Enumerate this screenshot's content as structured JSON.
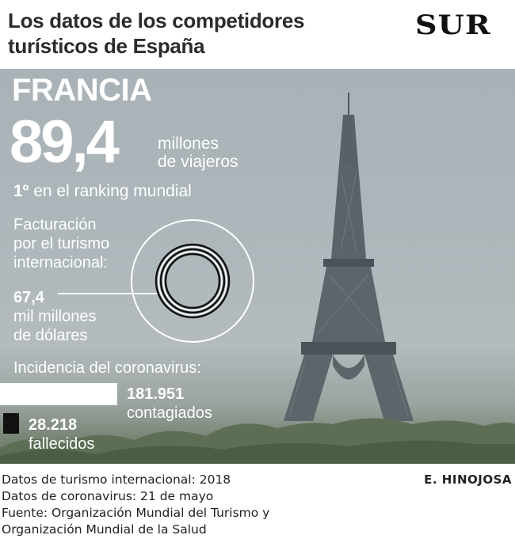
{
  "header": {
    "title_line1": "Los datos de los competidores",
    "title_line2": "turísticos de España",
    "logo": "SUR"
  },
  "infographic": {
    "country": "FRANCIA",
    "travelers_value": "89,4",
    "travelers_unit_line1": "millones",
    "travelers_unit_line2": "de viajeros",
    "rank_number": "1º",
    "rank_text": "en el ranking mundial",
    "revenue_label_line1": "Facturación",
    "revenue_label_line2": "por el turismo",
    "revenue_label_line3": "internacional:",
    "revenue_value": "67,4",
    "revenue_unit_line1": "mil millones",
    "revenue_unit_line2": "de dólares",
    "incidence_label": "Incidencia del coronavirus:",
    "cases_value": "181.951",
    "cases_label": "contagiados",
    "deaths_value": "28.218",
    "deaths_label": "fallecidos"
  },
  "footer": {
    "line1": "Datos de turismo internacional: 2018",
    "line2": "Datos de coronavirus: 21 de mayo",
    "line3": "Fuente: Organización Mundial del Turismo y",
    "line4": "Organización Mundial de la Salud",
    "author": "E. HINOJOSA"
  },
  "colors": {
    "sky": "#adb6ba",
    "trees": "#5e6f55",
    "text_overlay": "#ffffff",
    "deaths_bar": "#111111"
  }
}
